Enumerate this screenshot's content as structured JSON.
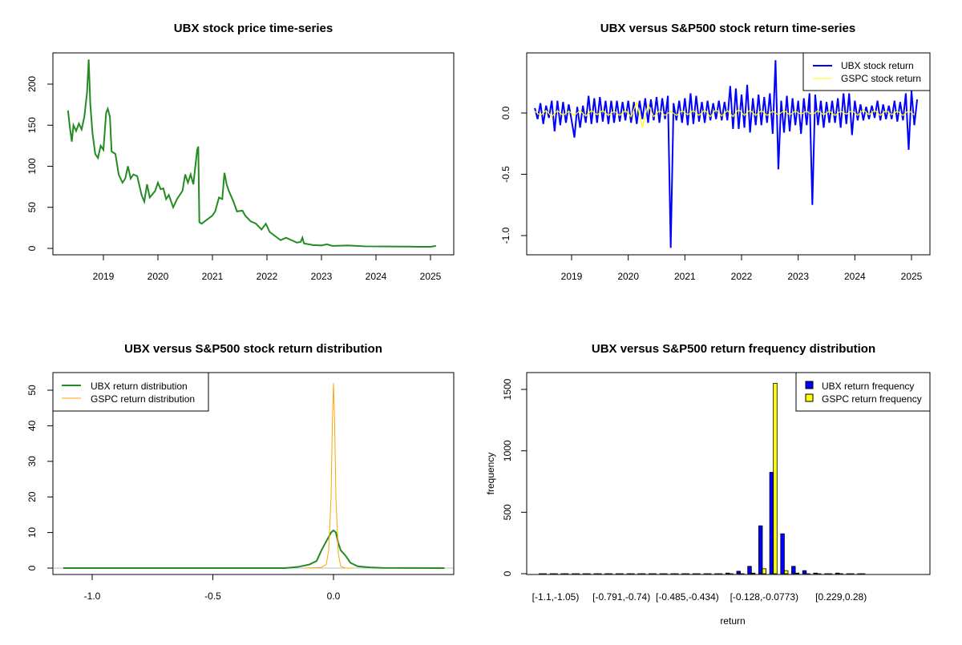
{
  "chart_data": [
    {
      "type": "line",
      "title": "UBX stock price time-series",
      "xlabel": "",
      "ylabel": "",
      "xlim": [
        2018.2,
        2025.25
      ],
      "ylim": [
        -8,
        235
      ],
      "xticks": [
        2019,
        2020,
        2021,
        2022,
        2023,
        2024,
        2025
      ],
      "xtick_labels": [
        "2019",
        "2020",
        "2021",
        "2022",
        "2023",
        "2024",
        "2025"
      ],
      "yticks": [
        0,
        50,
        100,
        150,
        200
      ],
      "ytick_labels": [
        "0",
        "50",
        "100",
        "150",
        "200"
      ],
      "color": "#228B22",
      "series": [
        {
          "name": "UBX price",
          "points": [
            [
              2018.35,
              168
            ],
            [
              2018.38,
              150
            ],
            [
              2018.42,
              130
            ],
            [
              2018.45,
              150
            ],
            [
              2018.5,
              143
            ],
            [
              2018.55,
              152
            ],
            [
              2018.6,
              145
            ],
            [
              2018.65,
              160
            ],
            [
              2018.7,
              190
            ],
            [
              2018.73,
              230
            ],
            [
              2018.76,
              175
            ],
            [
              2018.8,
              140
            ],
            [
              2018.85,
              115
            ],
            [
              2018.9,
              110
            ],
            [
              2018.95,
              125
            ],
            [
              2019.0,
              120
            ],
            [
              2019.05,
              165
            ],
            [
              2019.08,
              170
            ],
            [
              2019.12,
              160
            ],
            [
              2019.15,
              118
            ],
            [
              2019.22,
              115
            ],
            [
              2019.28,
              90
            ],
            [
              2019.35,
              80
            ],
            [
              2019.4,
              85
            ],
            [
              2019.45,
              100
            ],
            [
              2019.5,
              85
            ],
            [
              2019.55,
              90
            ],
            [
              2019.62,
              88
            ],
            [
              2019.7,
              65
            ],
            [
              2019.75,
              57
            ],
            [
              2019.8,
              78
            ],
            [
              2019.85,
              62
            ],
            [
              2019.95,
              70
            ],
            [
              2020.0,
              80
            ],
            [
              2020.05,
              72
            ],
            [
              2020.1,
              73
            ],
            [
              2020.15,
              60
            ],
            [
              2020.2,
              65
            ],
            [
              2020.28,
              50
            ],
            [
              2020.35,
              60
            ],
            [
              2020.45,
              70
            ],
            [
              2020.5,
              90
            ],
            [
              2020.55,
              80
            ],
            [
              2020.6,
              90
            ],
            [
              2020.65,
              78
            ],
            [
              2020.72,
              120
            ],
            [
              2020.74,
              124
            ],
            [
              2020.76,
              32
            ],
            [
              2020.8,
              30
            ],
            [
              2020.9,
              35
            ],
            [
              2021.0,
              40
            ],
            [
              2021.05,
              45
            ],
            [
              2021.12,
              62
            ],
            [
              2021.18,
              60
            ],
            [
              2021.22,
              92
            ],
            [
              2021.26,
              78
            ],
            [
              2021.3,
              70
            ],
            [
              2021.38,
              58
            ],
            [
              2021.45,
              45
            ],
            [
              2021.55,
              46
            ],
            [
              2021.6,
              40
            ],
            [
              2021.7,
              33
            ],
            [
              2021.8,
              30
            ],
            [
              2021.9,
              23
            ],
            [
              2021.98,
              30
            ],
            [
              2022.05,
              20
            ],
            [
              2022.15,
              15
            ],
            [
              2022.25,
              10
            ],
            [
              2022.35,
              13
            ],
            [
              2022.45,
              10
            ],
            [
              2022.55,
              7
            ],
            [
              2022.62,
              8
            ],
            [
              2022.65,
              13
            ],
            [
              2022.68,
              6
            ],
            [
              2022.85,
              4
            ],
            [
              2023.0,
              3.5
            ],
            [
              2023.1,
              5
            ],
            [
              2023.2,
              3
            ],
            [
              2023.5,
              3.5
            ],
            [
              2023.8,
              2.5
            ],
            [
              2024.5,
              2.2
            ],
            [
              2024.8,
              2
            ],
            [
              2025.0,
              2
            ],
            [
              2025.1,
              3
            ]
          ]
        }
      ]
    },
    {
      "type": "line",
      "title": "UBX versus S&P500 stock return time-series",
      "xlim": [
        2018.2,
        2025.25
      ],
      "ylim": [
        -1.15,
        0.47
      ],
      "xticks": [
        2019,
        2020,
        2021,
        2022,
        2023,
        2024,
        2025
      ],
      "xtick_labels": [
        "2019",
        "2020",
        "2021",
        "2022",
        "2023",
        "2024",
        "2025"
      ],
      "yticks": [
        -1.0,
        -0.5,
        0.0
      ],
      "ytick_labels": [
        "-1.0",
        "-0.5",
        "0.0"
      ],
      "legend_position": "top-right",
      "series": [
        {
          "name": "UBX stock return",
          "color": "#0000FF",
          "x_start": 2018.35,
          "x_step": 0.05,
          "values": [
            0.04,
            -0.05,
            0.08,
            -0.09,
            0.06,
            -0.04,
            0.1,
            -0.15,
            0.1,
            -0.1,
            0.09,
            -0.08,
            0.07,
            -0.06,
            -0.2,
            0.05,
            -0.12,
            0.06,
            -0.08,
            0.14,
            -0.09,
            0.12,
            -0.08,
            0.13,
            -0.07,
            0.1,
            -0.09,
            0.1,
            -0.08,
            0.1,
            -0.07,
            0.09,
            -0.06,
            0.1,
            -0.08,
            0.09,
            -0.09,
            0.1,
            -0.05,
            0.12,
            -0.08,
            0.11,
            -0.06,
            0.13,
            -0.08,
            0.12,
            -0.05,
            0.14,
            -1.1,
            0.08,
            -0.06,
            0.1,
            -0.08,
            0.12,
            -0.1,
            0.16,
            -0.09,
            0.14,
            -0.07,
            0.09,
            -0.08,
            0.1,
            -0.06,
            0.08,
            -0.05,
            0.1,
            -0.06,
            0.09,
            -0.06,
            0.22,
            -0.13,
            0.2,
            -0.13,
            0.15,
            -0.12,
            0.23,
            -0.16,
            0.12,
            -0.1,
            0.15,
            -0.1,
            0.13,
            -0.08,
            0.16,
            -0.17,
            0.43,
            -0.46,
            0.1,
            -0.16,
            0.14,
            -0.15,
            0.12,
            -0.1,
            0.1,
            -0.17,
            0.12,
            -0.1,
            0.16,
            -0.75,
            0.15,
            -0.1,
            0.1,
            -0.12,
            0.09,
            -0.08,
            0.1,
            -0.08,
            0.12,
            -0.12,
            0.16,
            -0.09,
            0.16,
            -0.18,
            0.1,
            -0.06,
            0.07,
            -0.06,
            0.05,
            -0.05,
            0.06,
            -0.04,
            0.1,
            -0.06,
            0.07,
            -0.05,
            0.06,
            -0.05,
            0.1,
            -0.07,
            0.09,
            -0.06,
            0.16,
            -0.3,
            0.18,
            -0.1,
            0.11
          ]
        },
        {
          "name": "GSPC stock return",
          "color": "#FFFF00",
          "x_start": 2018.35,
          "x_step": 0.1,
          "values": [
            0.015,
            -0.02,
            0.02,
            -0.03,
            0.02,
            -0.02,
            0.015,
            -0.02,
            0.02,
            -0.025,
            0.02,
            -0.015,
            0.02,
            -0.02,
            0.015,
            -0.02,
            0.02,
            -0.03,
            0.09,
            -0.12,
            0.07,
            -0.03,
            0.02,
            -0.02,
            0.015,
            -0.02,
            0.02,
            -0.015,
            0.02,
            -0.02,
            0.025,
            -0.03,
            0.03,
            -0.025,
            0.02,
            -0.03,
            0.03,
            -0.02,
            0.025,
            -0.02,
            0.02,
            -0.02,
            0.015,
            -0.015,
            0.02,
            -0.015,
            0.015,
            -0.01,
            0.015,
            -0.015,
            0.02,
            -0.015,
            0.015,
            -0.02,
            0.015,
            -0.01,
            0.02,
            -0.02,
            0.025,
            -0.015,
            0.02,
            -0.02,
            0.02,
            -0.015,
            0.015,
            -0.02,
            0.02,
            -0.015
          ]
        }
      ]
    },
    {
      "type": "line",
      "title": "UBX versus S&P500 stock return distribution",
      "xlim": [
        -1.165,
        0.5
      ],
      "ylim": [
        -1.8,
        54
      ],
      "xticks": [
        -1.0,
        -0.5,
        0.0
      ],
      "xtick_labels": [
        "-1.0",
        "-0.5",
        "0.0"
      ],
      "yticks": [
        0,
        10,
        20,
        30,
        40,
        50
      ],
      "ytick_labels": [
        "0",
        "10",
        "20",
        "30",
        "40",
        "50"
      ],
      "legend_position": "top-left",
      "series": [
        {
          "name": "UBX return distribution",
          "color": "#228B22",
          "points": [
            [
              -1.12,
              0
            ],
            [
              -0.2,
              0
            ],
            [
              -0.15,
              0.3
            ],
            [
              -0.1,
              1
            ],
            [
              -0.07,
              2
            ],
            [
              -0.05,
              5
            ],
            [
              -0.03,
              7.5
            ],
            [
              -0.01,
              10
            ],
            [
              0,
              10.6
            ],
            [
              0.01,
              10
            ],
            [
              0.02,
              7
            ],
            [
              0.03,
              5
            ],
            [
              0.05,
              3.5
            ],
            [
              0.07,
              1.5
            ],
            [
              0.1,
              0.5
            ],
            [
              0.15,
              0.2
            ],
            [
              0.2,
              0.05
            ],
            [
              0.46,
              0
            ]
          ]
        },
        {
          "name": "GSPC return distribution",
          "color": "#FFA500",
          "points": [
            [
              -0.12,
              0
            ],
            [
              -0.05,
              0.2
            ],
            [
              -0.03,
              1
            ],
            [
              -0.02,
              5
            ],
            [
              -0.01,
              20
            ],
            [
              -0.005,
              40
            ],
            [
              0,
              52
            ],
            [
              0.005,
              40
            ],
            [
              0.01,
              20
            ],
            [
              0.02,
              4
            ],
            [
              0.03,
              0.5
            ],
            [
              0.05,
              0
            ],
            [
              0.08,
              0
            ]
          ]
        }
      ]
    },
    {
      "type": "bar",
      "title": "UBX versus S&P500 return frequency distribution",
      "xlabel": "return",
      "ylabel": "frequency",
      "ylim": [
        0,
        1630
      ],
      "yticks": [
        0,
        500,
        1000,
        1500
      ],
      "ytick_labels": [
        "0",
        "500",
        "1000",
        "1500"
      ],
      "bin_count": 30,
      "xtick_labels": [
        {
          "bin": 1,
          "label": "[-1.1,-1.05)"
        },
        {
          "bin": 7,
          "label": "[-0.791,-0.74)"
        },
        {
          "bin": 13,
          "label": "[-0.485,-0.434)"
        },
        {
          "bin": 20,
          "label": "[-0.128,-0.0773)"
        },
        {
          "bin": 27,
          "label": "[0.229,0.28)"
        }
      ],
      "legend_position": "top-right",
      "series": [
        {
          "name": "UBX return frequency",
          "color": "#0000FF",
          "values": [
            0,
            0,
            0,
            0,
            0,
            0,
            0,
            0,
            0,
            0,
            0,
            0,
            0,
            0,
            0,
            0,
            0,
            5,
            20,
            60,
            390,
            825,
            325,
            60,
            25,
            5,
            0,
            5,
            0,
            0
          ]
        },
        {
          "name": "GSPC return frequency",
          "color": "#FFFF00",
          "values": [
            0,
            0,
            0,
            0,
            0,
            0,
            0,
            0,
            0,
            0,
            0,
            0,
            0,
            0,
            0,
            0,
            0,
            0,
            0,
            5,
            40,
            1550,
            25,
            5,
            0,
            0,
            0,
            0,
            0,
            0
          ]
        }
      ]
    }
  ]
}
